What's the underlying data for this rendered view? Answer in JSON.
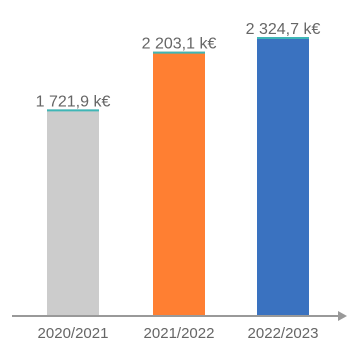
{
  "chart_data": {
    "type": "bar",
    "categories": [
      "2020/2021",
      "2021/2022",
      "2022/2023"
    ],
    "values": [
      1721.9,
      2203.1,
      2324.7
    ],
    "value_labels": [
      "1 721,9 k€",
      "2 203,1 k€",
      "2 324,7 k€"
    ],
    "bar_colors": [
      "#cccccc",
      "#ff7f32",
      "#3a72c0"
    ],
    "accent_line_color": "#3fb6b6",
    "axis_color": "#999999",
    "label_color": "#666666",
    "background_color": "#ffffff",
    "title": "",
    "xlabel": "",
    "ylabel": "",
    "ylim": [
      0,
      2500
    ],
    "grid": false,
    "legend": "none"
  }
}
